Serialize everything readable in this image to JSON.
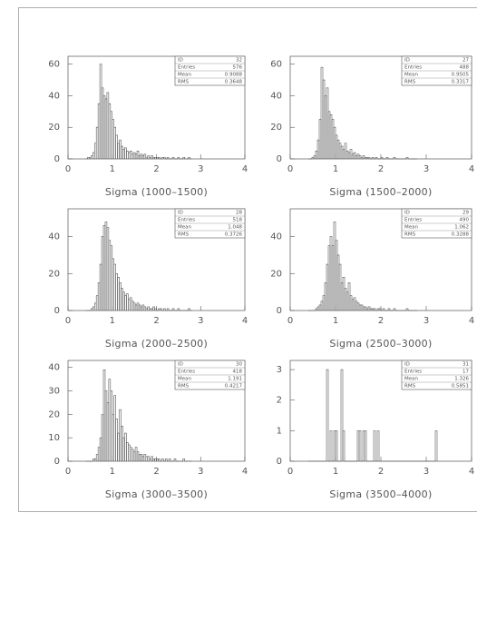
{
  "chart_data": [
    {
      "type": "histogram",
      "x_label": "Sigma (1000–1500)",
      "bins": [
        0.4,
        0.44,
        0.48,
        0.52,
        0.56,
        0.6,
        0.64,
        0.68,
        0.72,
        0.76,
        0.8,
        0.84,
        0.88,
        0.92,
        0.96,
        1,
        1.04,
        1.08,
        1.12,
        1.16,
        1.2,
        1.24,
        1.28,
        1.32,
        1.36,
        1.4,
        1.44,
        1.48,
        1.52,
        1.56,
        1.6,
        1.64,
        1.68,
        1.72,
        1.76,
        1.8,
        1.84,
        1.88,
        1.92,
        1.96,
        2,
        2.04,
        2.08,
        2.12,
        2.16,
        2.2,
        2.24,
        2.28,
        2.32,
        2.36,
        2.4,
        2.44,
        2.48,
        2.52,
        2.56,
        2.6,
        2.64,
        2.68,
        2.72,
        2.76,
        2.8
      ],
      "values": [
        0,
        1,
        1,
        2,
        4,
        10,
        20,
        35,
        60,
        45,
        40,
        38,
        42,
        35,
        30,
        25,
        20,
        15,
        10,
        12,
        8,
        6,
        7,
        5,
        4,
        5,
        3,
        4,
        3,
        5,
        2,
        3,
        2,
        3,
        1,
        2,
        1,
        2,
        1,
        1,
        1,
        1,
        0,
        1,
        1,
        0,
        1,
        0,
        0,
        1,
        0,
        0,
        1,
        0,
        0,
        1,
        0,
        0,
        1,
        0
      ],
      "xlim": [
        0,
        4
      ],
      "xticks": [
        0,
        1,
        2,
        3,
        4
      ],
      "ylim": [
        0,
        65
      ],
      "yticks": [
        0,
        20,
        40,
        60
      ],
      "stats": [
        {
          "label": "ID",
          "value": 32
        },
        {
          "label": "Entries",
          "value": 576
        },
        {
          "label": "Mean",
          "value": 0.9088
        },
        {
          "label": "RMS",
          "value": 0.3648
        }
      ]
    },
    {
      "type": "histogram",
      "x_label": "Sigma (1500–2000)",
      "bins": [
        0.4,
        0.44,
        0.48,
        0.52,
        0.56,
        0.6,
        0.64,
        0.68,
        0.72,
        0.76,
        0.8,
        0.84,
        0.88,
        0.92,
        0.96,
        1,
        1.04,
        1.08,
        1.12,
        1.16,
        1.2,
        1.24,
        1.28,
        1.32,
        1.36,
        1.4,
        1.44,
        1.48,
        1.52,
        1.56,
        1.6,
        1.64,
        1.68,
        1.72,
        1.76,
        1.8,
        1.84,
        1.88,
        1.92,
        1.96,
        2,
        2.04,
        2.08,
        2.12,
        2.16,
        2.2,
        2.24,
        2.28,
        2.32,
        2.36,
        2.4,
        2.44,
        2.48,
        2.52,
        2.56,
        2.6,
        2.64,
        2.68,
        2.72,
        2.76,
        2.8
      ],
      "values": [
        0,
        0,
        1,
        2,
        5,
        12,
        25,
        58,
        50,
        40,
        45,
        30,
        28,
        25,
        20,
        15,
        12,
        10,
        8,
        6,
        10,
        5,
        4,
        6,
        3,
        4,
        2,
        3,
        2,
        1,
        2,
        1,
        1,
        1,
        0,
        1,
        0,
        1,
        0,
        0,
        1,
        0,
        0,
        1,
        0,
        0,
        0,
        1,
        0,
        0,
        0,
        0,
        0,
        0,
        1,
        0,
        0,
        0,
        0,
        0
      ],
      "xlim": [
        0,
        4
      ],
      "xticks": [
        0,
        1,
        2,
        3,
        4
      ],
      "ylim": [
        0,
        65
      ],
      "yticks": [
        0,
        20,
        40,
        60
      ],
      "stats": [
        {
          "label": "ID",
          "value": 27
        },
        {
          "label": "Entries",
          "value": 488
        },
        {
          "label": "Mean",
          "value": 0.9505
        },
        {
          "label": "RMS",
          "value": 0.3317
        }
      ]
    },
    {
      "type": "histogram",
      "x_label": "Sigma (2000–2500)",
      "bins": [
        0.4,
        0.44,
        0.48,
        0.52,
        0.56,
        0.6,
        0.64,
        0.68,
        0.72,
        0.76,
        0.8,
        0.84,
        0.88,
        0.92,
        0.96,
        1,
        1.04,
        1.08,
        1.12,
        1.16,
        1.2,
        1.24,
        1.28,
        1.32,
        1.36,
        1.4,
        1.44,
        1.48,
        1.52,
        1.56,
        1.6,
        1.64,
        1.68,
        1.72,
        1.76,
        1.8,
        1.84,
        1.88,
        1.92,
        1.96,
        2,
        2.04,
        2.08,
        2.12,
        2.16,
        2.2,
        2.24,
        2.28,
        2.32,
        2.36,
        2.4,
        2.44,
        2.48,
        2.52,
        2.56,
        2.6,
        2.64,
        2.68,
        2.72,
        2.76,
        2.8
      ],
      "values": [
        0,
        0,
        0,
        1,
        2,
        4,
        8,
        15,
        25,
        40,
        46,
        48,
        45,
        38,
        35,
        28,
        25,
        20,
        18,
        15,
        12,
        10,
        8,
        9,
        6,
        7,
        5,
        4,
        3,
        4,
        3,
        2,
        3,
        2,
        1,
        2,
        1,
        1,
        2,
        1,
        0,
        1,
        1,
        0,
        1,
        0,
        1,
        0,
        0,
        1,
        0,
        0,
        1,
        0,
        0,
        0,
        0,
        0,
        1,
        0
      ],
      "xlim": [
        0,
        4
      ],
      "xticks": [
        0,
        1,
        2,
        3,
        4
      ],
      "ylim": [
        0,
        55
      ],
      "yticks": [
        0,
        20,
        40
      ],
      "stats": [
        {
          "label": "ID",
          "value": 28
        },
        {
          "label": "Entries",
          "value": 518
        },
        {
          "label": "Mean",
          "value": 1.048
        },
        {
          "label": "RMS",
          "value": 0.3726
        }
      ]
    },
    {
      "type": "histogram",
      "x_label": "Sigma (2500–3000)",
      "bins": [
        0.4,
        0.44,
        0.48,
        0.52,
        0.56,
        0.6,
        0.64,
        0.68,
        0.72,
        0.76,
        0.8,
        0.84,
        0.88,
        0.92,
        0.96,
        1,
        1.04,
        1.08,
        1.12,
        1.16,
        1.2,
        1.24,
        1.28,
        1.32,
        1.36,
        1.4,
        1.44,
        1.48,
        1.52,
        1.56,
        1.6,
        1.64,
        1.68,
        1.72,
        1.76,
        1.8,
        1.84,
        1.88,
        1.92,
        1.96,
        2,
        2.04,
        2.08,
        2.12,
        2.16,
        2.2,
        2.24,
        2.28,
        2.32,
        2.36,
        2.4,
        2.44,
        2.48,
        2.52,
        2.56,
        2.6,
        2.64,
        2.68,
        2.72,
        2.76,
        2.8
      ],
      "values": [
        0,
        0,
        0,
        0,
        1,
        2,
        3,
        5,
        8,
        15,
        25,
        35,
        40,
        35,
        48,
        38,
        30,
        25,
        15,
        18,
        12,
        10,
        15,
        8,
        6,
        7,
        5,
        4,
        3,
        3,
        2,
        2,
        1,
        2,
        1,
        1,
        1,
        0,
        1,
        1,
        0,
        1,
        0,
        0,
        1,
        0,
        0,
        1,
        0,
        0,
        0,
        0,
        0,
        0,
        1,
        0,
        0,
        0,
        0,
        0
      ],
      "xlim": [
        0,
        4
      ],
      "xticks": [
        0,
        1,
        2,
        3,
        4
      ],
      "ylim": [
        0,
        55
      ],
      "yticks": [
        0,
        20,
        40
      ],
      "stats": [
        {
          "label": "ID",
          "value": 29
        },
        {
          "label": "Entries",
          "value": 490
        },
        {
          "label": "Mean",
          "value": 1.062
        },
        {
          "label": "RMS",
          "value": 0.3288
        }
      ]
    },
    {
      "type": "histogram",
      "x_label": "Sigma (3000–3500)",
      "bins": [
        0.4,
        0.44,
        0.48,
        0.52,
        0.56,
        0.6,
        0.64,
        0.68,
        0.72,
        0.76,
        0.8,
        0.84,
        0.88,
        0.92,
        0.96,
        1,
        1.04,
        1.08,
        1.12,
        1.16,
        1.2,
        1.24,
        1.28,
        1.32,
        1.36,
        1.4,
        1.44,
        1.48,
        1.52,
        1.56,
        1.6,
        1.64,
        1.68,
        1.72,
        1.76,
        1.8,
        1.84,
        1.88,
        1.92,
        1.96,
        2,
        2.04,
        2.08,
        2.12,
        2.16,
        2.2,
        2.24,
        2.28,
        2.32,
        2.36,
        2.4,
        2.44,
        2.48,
        2.52,
        2.56,
        2.6,
        2.64,
        2.68,
        2.72,
        2.76,
        2.8
      ],
      "values": [
        0,
        0,
        0,
        0,
        1,
        1,
        3,
        6,
        10,
        20,
        39,
        30,
        25,
        35,
        30,
        20,
        28,
        18,
        12,
        22,
        15,
        10,
        12,
        8,
        7,
        6,
        5,
        4,
        6,
        4,
        3,
        3,
        2,
        3,
        2,
        2,
        1,
        2,
        1,
        1,
        1,
        1,
        0,
        1,
        0,
        1,
        0,
        1,
        0,
        0,
        1,
        0,
        0,
        0,
        0,
        1,
        0,
        0,
        0,
        0
      ],
      "xlim": [
        0,
        4
      ],
      "xticks": [
        0,
        1,
        2,
        3,
        4
      ],
      "ylim": [
        0,
        43
      ],
      "yticks": [
        0,
        10,
        20,
        30,
        40
      ],
      "stats": [
        {
          "label": "ID",
          "value": 30
        },
        {
          "label": "Entries",
          "value": 418
        },
        {
          "label": "Mean",
          "value": 1.191
        },
        {
          "label": "RMS",
          "value": 0.4217
        }
      ]
    },
    {
      "type": "histogram",
      "x_label": "Sigma (3500–4000)",
      "bins": [
        0.4,
        0.8,
        0.84,
        0.88,
        0.92,
        0.96,
        1,
        1.04,
        1.12,
        1.16,
        1.2,
        1.24,
        1.48,
        1.52,
        1.56,
        1.6,
        1.64,
        1.68,
        1.84,
        1.88,
        1.92,
        1.96,
        3.2,
        3.24
      ],
      "values": [
        0,
        3,
        0,
        1,
        0,
        1,
        1,
        0,
        3,
        1,
        0,
        0,
        1,
        1,
        0,
        1,
        1,
        0,
        1,
        0,
        1,
        0,
        1
      ],
      "xlim": [
        0,
        4
      ],
      "xticks": [
        0,
        1,
        2,
        3,
        4
      ],
      "ylim": [
        0,
        3.3
      ],
      "yticks": [
        0,
        1,
        2,
        3
      ],
      "stats": [
        {
          "label": "ID",
          "value": 31
        },
        {
          "label": "Entries",
          "value": 17
        },
        {
          "label": "Mean",
          "value": 1.326
        },
        {
          "label": "RMS",
          "value": 0.5851
        }
      ]
    }
  ]
}
